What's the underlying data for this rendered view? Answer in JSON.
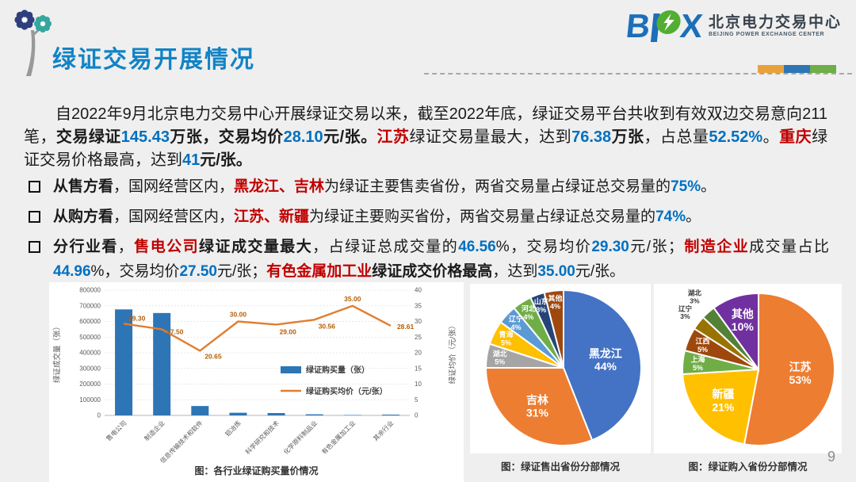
{
  "header": {
    "title": "绿证交易开展情况",
    "logo": {
      "letter_b": "B",
      "letter_x": "X",
      "cn": "北京电力交易中心",
      "en": "BEIJING POWER EXCHANGE CENTER"
    },
    "tricolor": [
      "#E9A23B",
      "#2E75B6",
      "#6FAD47"
    ]
  },
  "intro_segments": [
    {
      "t": "自2022年9月北京电力交易中心开展绿证交易以来，截至2022年底，绿证交易平台共收到有效双边交易意向211笔，",
      "s": "n"
    },
    {
      "t": "交易绿证",
      "s": "b"
    },
    {
      "t": "145.43",
      "s": "bb"
    },
    {
      "t": "万张，交易均价",
      "s": "b"
    },
    {
      "t": "28.10",
      "s": "bb"
    },
    {
      "t": "元/张。",
      "s": "b"
    },
    {
      "t": "江苏",
      "s": "rb"
    },
    {
      "t": "绿证交易量最大，达到",
      "s": "n"
    },
    {
      "t": "76.38",
      "s": "bb"
    },
    {
      "t": "万张",
      "s": "b"
    },
    {
      "t": "，占总量",
      "s": "n"
    },
    {
      "t": "52.52%",
      "s": "bb"
    },
    {
      "t": "。",
      "s": "n"
    },
    {
      "t": "重庆",
      "s": "rb"
    },
    {
      "t": "绿证交易价格最高，达到",
      "s": "n"
    },
    {
      "t": "41",
      "s": "bb"
    },
    {
      "t": "元/张。",
      "s": "b"
    }
  ],
  "bullets": [
    {
      "segments": [
        {
          "t": "从售方看",
          "s": "b"
        },
        {
          "t": "，国网经营区内，",
          "s": "n"
        },
        {
          "t": "黑龙江、吉林",
          "s": "rb"
        },
        {
          "t": "为绿证主要售卖省份，两省交易量占绿证总交易量的",
          "s": "n"
        },
        {
          "t": "75%",
          "s": "bb"
        },
        {
          "t": "。",
          "s": "n"
        }
      ]
    },
    {
      "segments": [
        {
          "t": "从购方看",
          "s": "b"
        },
        {
          "t": "，国网经营区内，",
          "s": "n"
        },
        {
          "t": "江苏、新疆",
          "s": "rb"
        },
        {
          "t": "为绿证主要购买省份，两省交易量占绿证总交易量的",
          "s": "n"
        },
        {
          "t": "74%",
          "s": "bb"
        },
        {
          "t": "。",
          "s": "n"
        }
      ]
    },
    {
      "segments": [
        {
          "t": "分行业看",
          "s": "b"
        },
        {
          "t": "，",
          "s": "n"
        },
        {
          "t": "售电公司",
          "s": "rb"
        },
        {
          "t": "绿证成交量最大",
          "s": "b"
        },
        {
          "t": "，占绿证总成交量的",
          "s": "n"
        },
        {
          "t": "46.56",
          "s": "bb"
        },
        {
          "t": "%，交易均价",
          "s": "n"
        },
        {
          "t": "29.30",
          "s": "bb"
        },
        {
          "t": "元/张；",
          "s": "n"
        },
        {
          "t": "制造企业",
          "s": "rb"
        },
        {
          "t": "成交量占比",
          "s": "n"
        },
        {
          "t": "44.96",
          "s": "bb"
        },
        {
          "t": "%，交易均价",
          "s": "n"
        },
        {
          "t": "27.50",
          "s": "bb"
        },
        {
          "t": "元/张；",
          "s": "n"
        },
        {
          "t": "有色金属加工业",
          "s": "rb"
        },
        {
          "t": "绿证成交价格最高",
          "s": "b"
        },
        {
          "t": "，达到",
          "s": "n"
        },
        {
          "t": "35.00",
          "s": "bb"
        },
        {
          "t": "元/张。",
          "s": "n"
        }
      ]
    }
  ],
  "chart_data": [
    {
      "type": "bar-line",
      "caption": "图：各行业绿证购买量价情况",
      "categories": [
        "售电公司",
        "制造企业",
        "信息传输技术和软件",
        "铝冶炼",
        "科学研究和技术",
        "化学原料制品业",
        "有色金属加工业",
        "其余行业"
      ],
      "series": [
        {
          "name": "绿证购买量（张）",
          "type": "bar",
          "axis": "left",
          "color": "#2E75B6",
          "values": [
            677000,
            654000,
            60000,
            17000,
            15000,
            7000,
            2500,
            5000
          ]
        },
        {
          "name": "绿证购买均价（元/张）",
          "type": "line",
          "axis": "right",
          "color": "#E07E30",
          "label_color": "#B45F06",
          "values": [
            29.3,
            27.5,
            20.65,
            30.0,
            29.0,
            30.56,
            35.0,
            28.61
          ]
        }
      ],
      "y_left": {
        "label": "绿证成交量（张）",
        "min": 0,
        "max": 800000,
        "step": 100000
      },
      "y_right": {
        "label": "绿证均价（元/张）",
        "min": 0,
        "max": 40,
        "step": 5
      },
      "legend_position": "inside-right"
    },
    {
      "type": "pie",
      "caption": "图：绿证售出省份分部情况",
      "slices": [
        {
          "label": "黑龙江",
          "pct": 44,
          "color": "#4472C4",
          "font": 14,
          "label_r": 0.55
        },
        {
          "label": "吉林",
          "pct": 31,
          "color": "#ED7D31",
          "font": 14,
          "label_r": 0.6
        },
        {
          "label": "湖北",
          "pct": 5,
          "color": "#A5A5A5",
          "font": 9,
          "label_r": 0.83
        },
        {
          "label": "青海",
          "pct": 5,
          "color": "#FFC000",
          "font": 9,
          "label_r": 0.83
        },
        {
          "label": "辽宁",
          "pct": 4,
          "color": "#5B9BD5",
          "font": 9,
          "label_r": 0.84
        },
        {
          "label": "河北",
          "pct": 4,
          "color": "#70AD47",
          "font": 9,
          "label_r": 0.84
        },
        {
          "label": "山东",
          "pct": 3,
          "color": "#264478",
          "font": 9,
          "label_r": 0.85
        },
        {
          "label": "其他",
          "pct": 4,
          "color": "#9E480E",
          "font": 9,
          "label_r": 0.85
        }
      ]
    },
    {
      "type": "pie",
      "caption": "图：绿证购入省份分部情况",
      "slices": [
        {
          "label": "江苏",
          "pct": 53,
          "color": "#ED7D31",
          "font": 14,
          "label_r": 0.55
        },
        {
          "label": "新疆",
          "pct": 21,
          "color": "#FFC000",
          "font": 14,
          "label_r": 0.62
        },
        {
          "label": "上海",
          "pct": 5,
          "color": "#70AD47",
          "font": 9,
          "label_r": 0.8
        },
        {
          "label": "江西",
          "pct": 5,
          "color": "#9E480E",
          "font": 9,
          "label_r": 0.8
        },
        {
          "label": "辽宁",
          "pct": 3,
          "color": "#997300",
          "font": 8.5,
          "label_r": 1.22,
          "label_color": "#333333"
        },
        {
          "label": "湖北",
          "pct": 3,
          "color": "#538135",
          "font": 8.5,
          "label_r": 1.27,
          "label_color": "#333333"
        },
        {
          "label": "其他",
          "pct": 10,
          "color": "#7030A0",
          "font": 14,
          "label_r": 0.68
        }
      ]
    }
  ],
  "page_number": "9"
}
